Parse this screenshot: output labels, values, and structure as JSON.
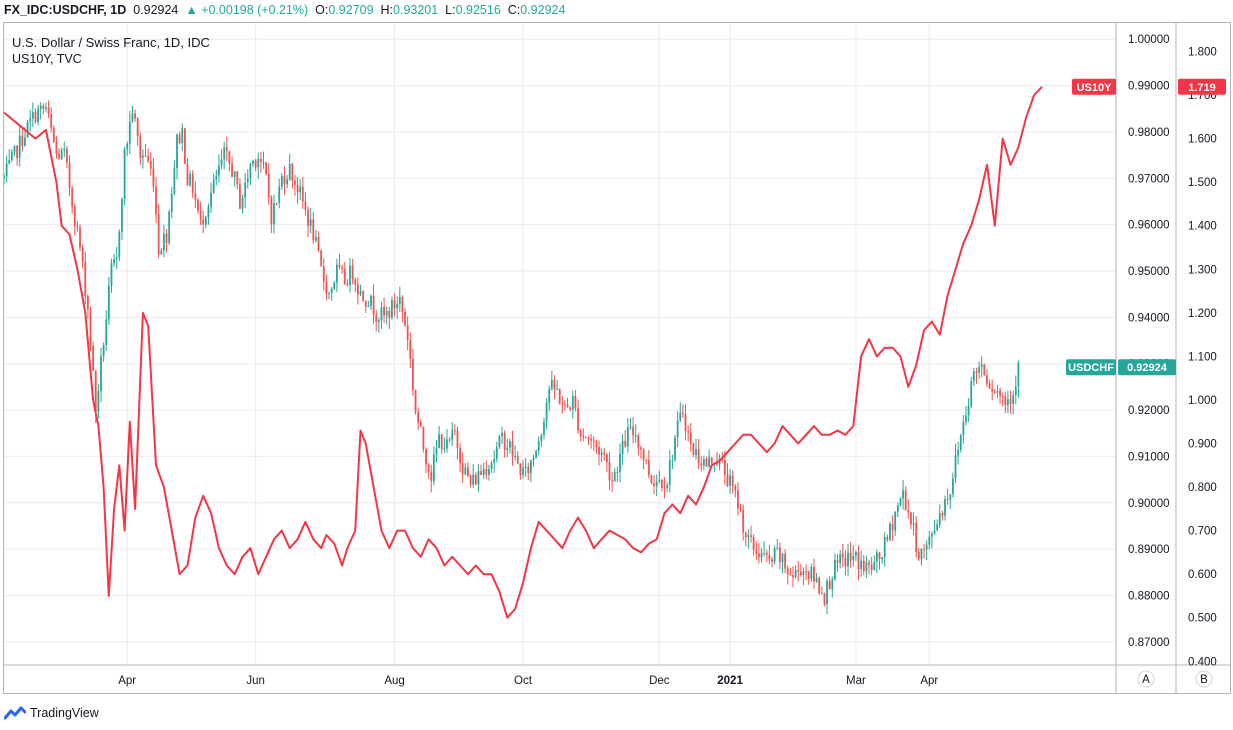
{
  "header": {
    "symbol": "FX_IDC:USDCHF, 1D",
    "last": "0.92924",
    "change": "▲ +0.00198 (+0.21%)",
    "open_label": "O:",
    "open": "0.92709",
    "high_label": "H:",
    "high": "0.93201",
    "low_label": "L:",
    "low": "0.92516",
    "close_label": "C:",
    "close": "0.92924"
  },
  "legend": {
    "main_series": "U.S. Dollar / Swiss Franc, 1D, IDC",
    "overlay_series": "US10Y, TVC"
  },
  "footer": {
    "brand": "TradingView",
    "logo_icon": "tradingview-logo-icon"
  },
  "scale_buttons": {
    "left_scale": "A",
    "right_scale": "B"
  },
  "colors": {
    "up": "#26a69a",
    "down": "#ef5350",
    "line": "#f23645",
    "grid": "#e8ebf0"
  },
  "chart_data": {
    "type": "candlestick",
    "x_labels": [
      "Apr",
      "Jun",
      "Aug",
      "Oct",
      "Dec",
      "2021",
      "Mar",
      "Apr"
    ],
    "series": [
      {
        "name": "USDCHF",
        "axis": "left",
        "ylim": [
          0.865,
          1.0035
        ],
        "ticks": [
          "0.87000",
          "0.88000",
          "0.89000",
          "0.90000",
          "0.91000",
          "0.92000",
          "0.93000",
          "0.94000",
          "0.95000",
          "0.96000",
          "0.97000",
          "0.98000",
          "0.99000",
          "1.00000"
        ],
        "last_label": "0.92924",
        "path": [
          [
            0,
            0.97
          ],
          [
            4,
            0.975
          ],
          [
            8,
            0.98
          ],
          [
            12,
            0.984
          ],
          [
            16,
            0.985
          ],
          [
            20,
            0.975
          ],
          [
            23,
            0.975
          ],
          [
            26,
            0.965
          ],
          [
            29,
            0.955
          ],
          [
            32,
            0.942
          ],
          [
            35,
            0.92
          ],
          [
            38,
            0.935
          ],
          [
            41,
            0.95
          ],
          [
            43,
            0.952
          ],
          [
            46,
            0.975
          ],
          [
            49,
            0.985
          ],
          [
            52,
            0.975
          ],
          [
            54,
            0.975
          ],
          [
            57,
            0.97
          ],
          [
            59,
            0.955
          ],
          [
            62,
            0.958
          ],
          [
            64,
            0.968
          ],
          [
            66,
            0.978
          ],
          [
            68,
            0.98
          ],
          [
            70,
            0.97
          ],
          [
            72,
            0.968
          ],
          [
            75,
            0.96
          ],
          [
            78,
            0.965
          ],
          [
            81,
            0.97
          ],
          [
            84,
            0.975
          ],
          [
            87,
            0.972
          ],
          [
            90,
            0.965
          ],
          [
            92,
            0.968
          ],
          [
            94,
            0.973
          ],
          [
            97,
            0.975
          ],
          [
            100,
            0.97
          ],
          [
            102,
            0.962
          ],
          [
            104,
            0.965
          ],
          [
            106,
            0.97
          ],
          [
            109,
            0.972
          ],
          [
            112,
            0.968
          ],
          [
            115,
            0.963
          ],
          [
            118,
            0.958
          ],
          [
            121,
            0.95
          ],
          [
            124,
            0.945
          ],
          [
            127,
            0.95
          ],
          [
            130,
            0.948
          ],
          [
            133,
            0.95
          ],
          [
            136,
            0.945
          ],
          [
            139,
            0.944
          ],
          [
            142,
            0.941
          ],
          [
            145,
            0.94
          ],
          [
            148,
            0.942
          ],
          [
            151,
            0.944
          ],
          [
            154,
            0.936
          ],
          [
            157,
            0.92
          ],
          [
            160,
            0.912
          ],
          [
            163,
            0.906
          ],
          [
            166,
            0.914
          ],
          [
            169,
            0.912
          ],
          [
            172,
            0.915
          ],
          [
            175,
            0.908
          ],
          [
            178,
            0.904
          ],
          [
            181,
            0.906
          ],
          [
            184,
            0.908
          ],
          [
            187,
            0.91
          ],
          [
            190,
            0.914
          ],
          [
            193,
            0.912
          ],
          [
            196,
            0.908
          ],
          [
            199,
            0.906
          ],
          [
            202,
            0.91
          ],
          [
            205,
            0.916
          ],
          [
            208,
            0.925
          ],
          [
            211,
            0.924
          ],
          [
            214,
            0.92
          ],
          [
            217,
            0.922
          ],
          [
            220,
            0.915
          ],
          [
            223,
            0.914
          ],
          [
            226,
            0.912
          ],
          [
            229,
            0.91
          ],
          [
            232,
            0.905
          ],
          [
            235,
            0.91
          ],
          [
            238,
            0.915
          ],
          [
            241,
            0.915
          ],
          [
            244,
            0.91
          ],
          [
            247,
            0.905
          ],
          [
            250,
            0.905
          ],
          [
            253,
            0.905
          ],
          [
            256,
            0.914
          ],
          [
            259,
            0.92
          ],
          [
            262,
            0.912
          ],
          [
            265,
            0.91
          ],
          [
            268,
            0.908
          ],
          [
            271,
            0.91
          ],
          [
            274,
            0.908
          ],
          [
            277,
            0.904
          ],
          [
            280,
            0.9
          ],
          [
            283,
            0.893
          ],
          [
            286,
            0.89
          ],
          [
            289,
            0.889
          ],
          [
            292,
            0.887
          ],
          [
            295,
            0.889
          ],
          [
            298,
            0.886
          ],
          [
            301,
            0.884
          ],
          [
            304,
            0.886
          ],
          [
            307,
            0.885
          ],
          [
            310,
            0.883
          ],
          [
            313,
            0.88
          ],
          [
            316,
            0.885
          ],
          [
            319,
            0.887
          ],
          [
            322,
            0.888
          ],
          [
            325,
            0.888
          ],
          [
            328,
            0.886
          ],
          [
            331,
            0.886
          ],
          [
            334,
            0.888
          ],
          [
            337,
            0.892
          ],
          [
            340,
            0.898
          ],
          [
            343,
            0.902
          ],
          [
            346,
            0.896
          ],
          [
            349,
            0.889
          ],
          [
            352,
            0.89
          ],
          [
            355,
            0.895
          ],
          [
            358,
            0.899
          ],
          [
            361,
            0.903
          ],
          [
            364,
            0.912
          ],
          [
            367,
            0.92
          ],
          [
            370,
            0.928
          ],
          [
            373,
            0.93
          ],
          [
            376,
            0.926
          ],
          [
            379,
            0.924
          ],
          [
            382,
            0.922
          ],
          [
            385,
            0.924
          ],
          [
            387,
            0.9292
          ]
        ]
      },
      {
        "name": "US10Y",
        "axis": "right",
        "ylim": [
          0.3915,
          1.8655
        ],
        "ticks": [
          "0.400",
          "0.500",
          "0.600",
          "0.700",
          "0.800",
          "0.900",
          "1.000",
          "1.100",
          "1.200",
          "1.300",
          "1.400",
          "1.500",
          "1.600",
          "1.700",
          "1.800"
        ],
        "last_label": "1.719",
        "path": [
          [
            0,
            1.66
          ],
          [
            4,
            1.64
          ],
          [
            8,
            1.62
          ],
          [
            12,
            1.6
          ],
          [
            16,
            1.62
          ],
          [
            20,
            1.5
          ],
          [
            22,
            1.4
          ],
          [
            25,
            1.38
          ],
          [
            28,
            1.3
          ],
          [
            31,
            1.2
          ],
          [
            34,
            1.0
          ],
          [
            36,
            0.94
          ],
          [
            38,
            0.8
          ],
          [
            40,
            0.55
          ],
          [
            42,
            0.75
          ],
          [
            44,
            0.85
          ],
          [
            46,
            0.7
          ],
          [
            48,
            0.95
          ],
          [
            50,
            0.75
          ],
          [
            53,
            1.2
          ],
          [
            55,
            1.17
          ],
          [
            58,
            0.85
          ],
          [
            61,
            0.8
          ],
          [
            64,
            0.7
          ],
          [
            67,
            0.6
          ],
          [
            70,
            0.62
          ],
          [
            73,
            0.73
          ],
          [
            76,
            0.78
          ],
          [
            79,
            0.74
          ],
          [
            82,
            0.66
          ],
          [
            85,
            0.62
          ],
          [
            88,
            0.6
          ],
          [
            91,
            0.64
          ],
          [
            94,
            0.66
          ],
          [
            97,
            0.6
          ],
          [
            100,
            0.64
          ],
          [
            103,
            0.68
          ],
          [
            106,
            0.7
          ],
          [
            109,
            0.66
          ],
          [
            112,
            0.68
          ],
          [
            115,
            0.72
          ],
          [
            118,
            0.68
          ],
          [
            121,
            0.66
          ],
          [
            123,
            0.69
          ],
          [
            126,
            0.67
          ],
          [
            129,
            0.62
          ],
          [
            131,
            0.66
          ],
          [
            134,
            0.7
          ],
          [
            136,
            0.93
          ],
          [
            138,
            0.9
          ],
          [
            141,
            0.8
          ],
          [
            144,
            0.7
          ],
          [
            147,
            0.66
          ],
          [
            150,
            0.7
          ],
          [
            153,
            0.7
          ],
          [
            156,
            0.66
          ],
          [
            159,
            0.64
          ],
          [
            162,
            0.68
          ],
          [
            165,
            0.66
          ],
          [
            168,
            0.62
          ],
          [
            171,
            0.64
          ],
          [
            174,
            0.62
          ],
          [
            177,
            0.6
          ],
          [
            180,
            0.62
          ],
          [
            183,
            0.6
          ],
          [
            186,
            0.6
          ],
          [
            189,
            0.56
          ],
          [
            192,
            0.5
          ],
          [
            195,
            0.52
          ],
          [
            198,
            0.58
          ],
          [
            201,
            0.66
          ],
          [
            204,
            0.72
          ],
          [
            207,
            0.7
          ],
          [
            210,
            0.68
          ],
          [
            213,
            0.66
          ],
          [
            216,
            0.7
          ],
          [
            219,
            0.73
          ],
          [
            222,
            0.7
          ],
          [
            225,
            0.66
          ],
          [
            228,
            0.68
          ],
          [
            231,
            0.7
          ],
          [
            234,
            0.69
          ],
          [
            237,
            0.68
          ],
          [
            240,
            0.66
          ],
          [
            243,
            0.65
          ],
          [
            246,
            0.67
          ],
          [
            249,
            0.68
          ],
          [
            252,
            0.74
          ],
          [
            255,
            0.76
          ],
          [
            258,
            0.74
          ],
          [
            261,
            0.78
          ],
          [
            264,
            0.76
          ],
          [
            267,
            0.8
          ],
          [
            270,
            0.85
          ],
          [
            273,
            0.86
          ],
          [
            276,
            0.88
          ],
          [
            279,
            0.9
          ],
          [
            282,
            0.92
          ],
          [
            285,
            0.92
          ],
          [
            288,
            0.9
          ],
          [
            291,
            0.88
          ],
          [
            294,
            0.9
          ],
          [
            297,
            0.94
          ],
          [
            300,
            0.92
          ],
          [
            303,
            0.9
          ],
          [
            306,
            0.92
          ],
          [
            309,
            0.94
          ],
          [
            312,
            0.92
          ],
          [
            315,
            0.92
          ],
          [
            318,
            0.93
          ],
          [
            321,
            0.92
          ],
          [
            324,
            0.94
          ],
          [
            327,
            1.1
          ],
          [
            330,
            1.14
          ],
          [
            333,
            1.1
          ],
          [
            336,
            1.12
          ],
          [
            339,
            1.12
          ],
          [
            342,
            1.1
          ],
          [
            345,
            1.03
          ],
          [
            348,
            1.08
          ],
          [
            351,
            1.16
          ],
          [
            354,
            1.18
          ],
          [
            357,
            1.15
          ],
          [
            360,
            1.24
          ],
          [
            363,
            1.3
          ],
          [
            366,
            1.36
          ],
          [
            369,
            1.4
          ],
          [
            372,
            1.46
          ],
          [
            375,
            1.54
          ],
          [
            378,
            1.4
          ],
          [
            381,
            1.6
          ],
          [
            384,
            1.54
          ],
          [
            387,
            1.58
          ],
          [
            390,
            1.65
          ],
          [
            393,
            1.7
          ],
          [
            396,
            1.719
          ]
        ]
      }
    ]
  }
}
